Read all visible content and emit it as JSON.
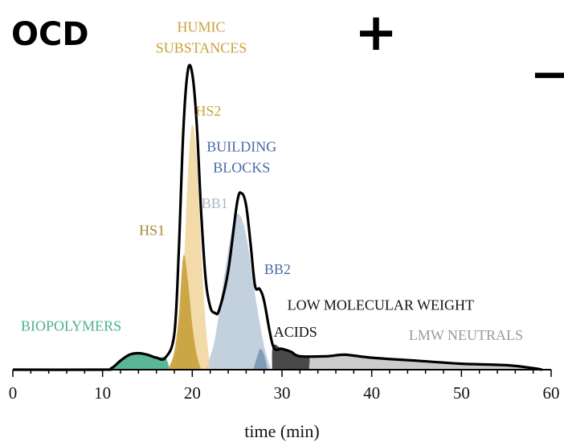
{
  "chart_data": {
    "type": "area",
    "title": "OCD",
    "xlabel": "time (min)",
    "ylabel": "",
    "xlim": [
      0,
      60
    ],
    "ylim": [
      0,
      100
    ],
    "xticks": [
      0,
      10,
      20,
      30,
      40,
      50,
      60
    ],
    "grid": false,
    "markers": [
      "+",
      "−"
    ],
    "total_signal": {
      "x": [
        0,
        10,
        11,
        12,
        13,
        14,
        15,
        16,
        17,
        18,
        18.5,
        19,
        19.5,
        20,
        20.5,
        21,
        21.5,
        22,
        22.5,
        23,
        24,
        25,
        25.5,
        26,
        26.5,
        27,
        27.5,
        28,
        29,
        30,
        31,
        32,
        35,
        37,
        40,
        45,
        50,
        55,
        58,
        59
      ],
      "y": [
        0,
        0,
        0.5,
        3,
        5,
        5.5,
        5,
        4,
        4,
        12,
        40,
        80,
        100,
        99,
        82,
        52,
        30,
        21,
        19,
        20,
        33,
        56,
        59,
        55,
        42,
        28,
        27,
        23,
        8,
        7,
        6,
        4.5,
        4.5,
        5,
        4,
        3,
        2,
        1.5,
        0.5,
        0
      ]
    },
    "series": [
      {
        "name": "BIOPOLYMERS",
        "color": "#4db08f",
        "x": [
          11,
          12,
          13,
          14,
          15,
          16,
          17,
          17.5
        ],
        "y": [
          0,
          3,
          5,
          5.5,
          5,
          4,
          4,
          0
        ]
      },
      {
        "name": "HS1",
        "color": "#c9a23d",
        "x": [
          17.3,
          18,
          18.5,
          19,
          19.5,
          20,
          20.5,
          21
        ],
        "y": [
          0,
          6,
          18,
          38,
          30,
          15,
          5,
          0
        ]
      },
      {
        "name": "HS2",
        "color": "#f0d49a",
        "x": [
          17.8,
          18.5,
          19,
          19.5,
          20,
          20.5,
          21,
          21.5,
          22
        ],
        "y": [
          0,
          10,
          30,
          65,
          82,
          70,
          40,
          15,
          0
        ]
      },
      {
        "name": "BB1",
        "color": "#b9c8d8",
        "x": [
          21.5,
          22.5,
          23.5,
          24.5,
          25.2,
          26,
          27,
          28,
          28.8
        ],
        "y": [
          0,
          10,
          30,
          48,
          52,
          45,
          25,
          8,
          0
        ]
      },
      {
        "name": "BB2",
        "color": "#7c97b5",
        "x": [
          26.8,
          27.3,
          27.6,
          28,
          28.4
        ],
        "y": [
          0,
          5,
          7,
          5,
          0
        ]
      },
      {
        "name": "LOW MOLECULAR WEIGHT ACIDS",
        "color": "#3a3a3a",
        "x": [
          28.9,
          29,
          30,
          31,
          32,
          33,
          33
        ],
        "y": [
          0,
          8,
          7,
          6,
          4.5,
          4.5,
          0
        ]
      },
      {
        "name": "LMW NEUTRALS",
        "color": "#c8c8c8",
        "x": [
          33,
          35,
          37,
          40,
          45,
          50,
          55,
          58,
          59
        ],
        "y": [
          4.5,
          4.5,
          5,
          4,
          3,
          2,
          1.5,
          0.5,
          0
        ]
      }
    ],
    "annotations": [
      {
        "text": "HUMIC",
        "color": "#c9a23d",
        "x": 21,
        "y": 113
      },
      {
        "text": "SUBSTANCES",
        "color": "#c9a23d",
        "x": 21,
        "y": 106
      },
      {
        "text": "HS2",
        "color": "#c9a23d",
        "x": 21.8,
        "y": 85
      },
      {
        "text": "BUILDING",
        "color": "#4a6aa8",
        "x": 25.5,
        "y": 73
      },
      {
        "text": "BLOCKS",
        "color": "#4a6aa8",
        "x": 25.5,
        "y": 66
      },
      {
        "text": "BB1",
        "color": "#a8b8ca",
        "x": 22.5,
        "y": 54
      },
      {
        "text": "HS1",
        "color": "#a88530",
        "x": 15.5,
        "y": 45
      },
      {
        "text": "BB2",
        "color": "#4a6aa8",
        "x": 29.5,
        "y": 32
      },
      {
        "text": "LOW MOLECULAR WEIGHT",
        "color": "#111111",
        "x": 41,
        "y": 20
      },
      {
        "text": "ACIDS",
        "color": "#111111",
        "x": 31.5,
        "y": 11
      },
      {
        "text": "LMW NEUTRALS",
        "color": "#9a9a9a",
        "x": 50.5,
        "y": 10
      },
      {
        "text": "BIOPOLYMERS",
        "color": "#4db08f",
        "x": 6.5,
        "y": 13
      }
    ]
  }
}
